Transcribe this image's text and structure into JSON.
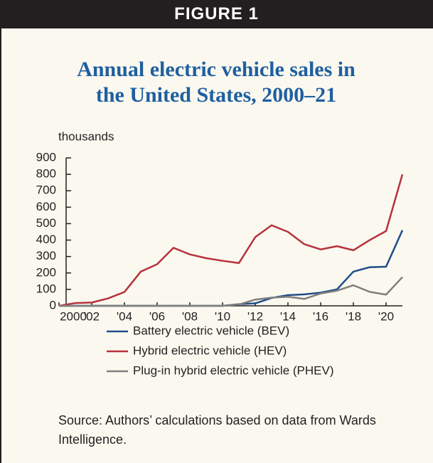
{
  "chart_data": {
    "type": "line",
    "figure_label": "FIGURE 1",
    "title": "Annual electric vehicle sales in the United States, 2000–21",
    "y_label": "thousands",
    "source": "Source: Authors’ calculations based on data from Wards Intelligence.",
    "x": [
      2000,
      2001,
      2002,
      2003,
      2004,
      2005,
      2006,
      2007,
      2008,
      2009,
      2010,
      2011,
      2012,
      2013,
      2014,
      2015,
      2016,
      2017,
      2018,
      2019,
      2020,
      2021
    ],
    "series": [
      {
        "name": "Battery electric vehicle (BEV)",
        "color": "#1f4e8c",
        "values": [
          0,
          0,
          0,
          0,
          0,
          0,
          0,
          0,
          0,
          0,
          0,
          10,
          15,
          48,
          65,
          70,
          80,
          100,
          208,
          235,
          238,
          460
        ]
      },
      {
        "name": "Hybrid electric vehicle (HEV)",
        "color": "#b5323c",
        "values": [
          0,
          17,
          20,
          45,
          84,
          208,
          253,
          353,
          313,
          290,
          274,
          260,
          418,
          490,
          450,
          375,
          343,
          363,
          338,
          400,
          455,
          800
        ]
      },
      {
        "name": "Plug-in hybrid electric vehicle (PHEV)",
        "color": "#7f7f7f",
        "values": [
          0,
          0,
          0,
          0,
          0,
          0,
          0,
          0,
          0,
          0,
          0,
          8,
          38,
          50,
          55,
          42,
          75,
          92,
          125,
          85,
          68,
          175
        ]
      }
    ],
    "xlim": [
      2000,
      2021
    ],
    "xticks": [
      2000,
      {
        "value": 2002,
        "label": "'02"
      },
      {
        "value": 2004,
        "label": "'04"
      },
      {
        "value": 2006,
        "label": "'06"
      },
      {
        "value": 2008,
        "label": "'08"
      },
      {
        "value": 2010,
        "label": "'10"
      },
      {
        "value": 2012,
        "label": "'12"
      },
      {
        "value": 2014,
        "label": "'14"
      },
      {
        "value": 2016,
        "label": "'16"
      },
      {
        "value": 2018,
        "label": "'18"
      },
      {
        "value": 2020,
        "label": "'20"
      }
    ],
    "ylim": [
      0,
      900
    ],
    "yticks": [
      0,
      100,
      200,
      300,
      400,
      500,
      600,
      700,
      800,
      900
    ],
    "grid": false
  }
}
